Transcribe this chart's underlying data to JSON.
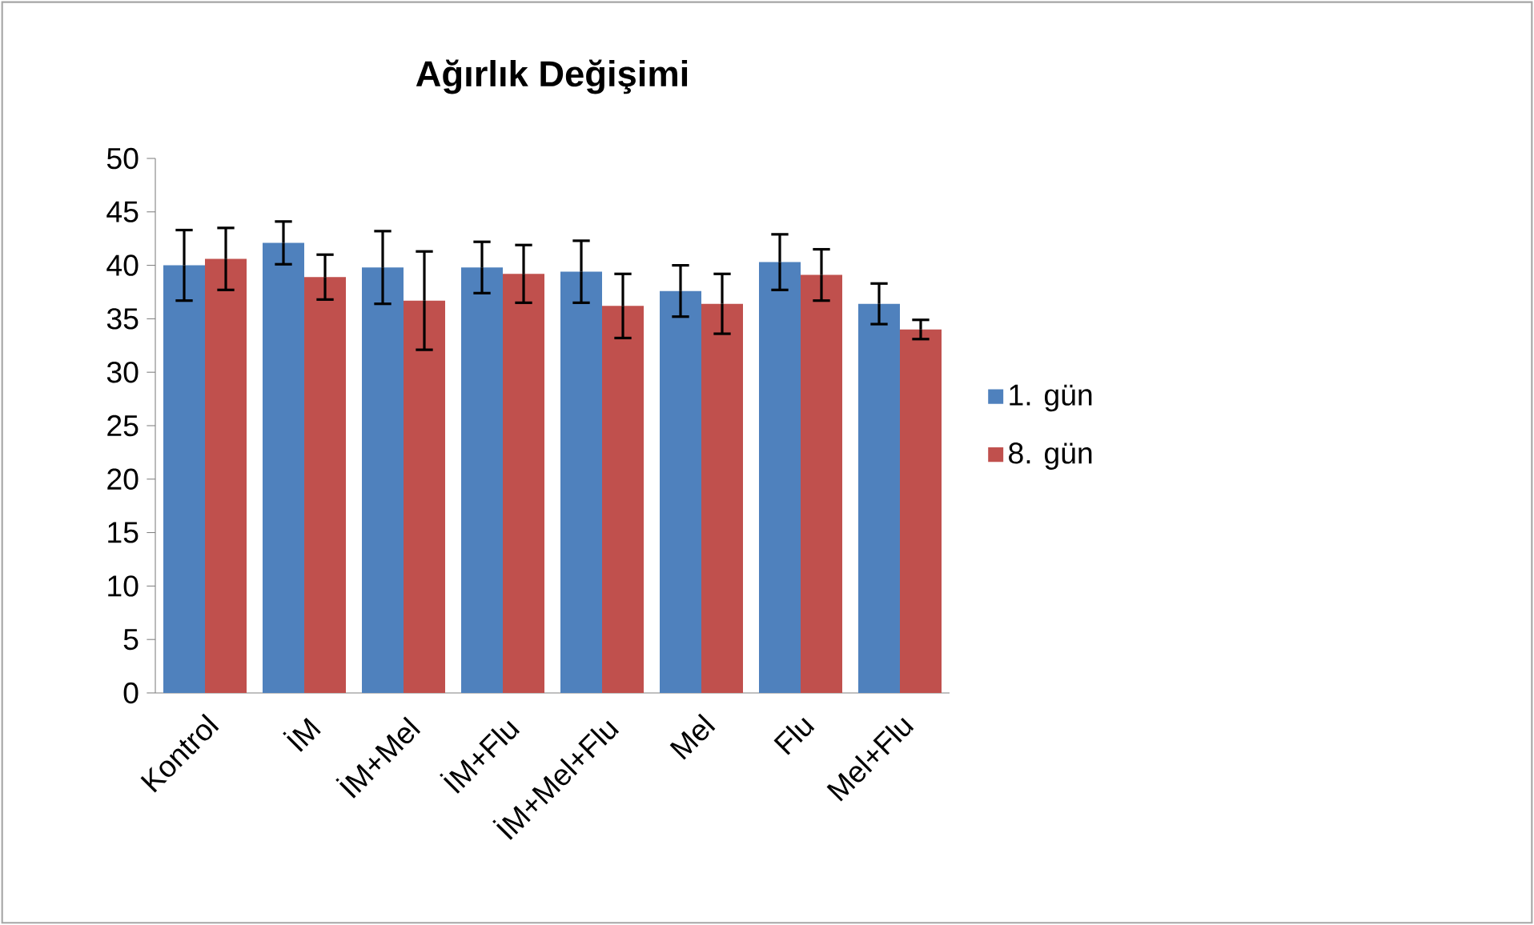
{
  "chart_data": {
    "type": "bar",
    "title": "Ağırlık Değişimi",
    "categories": [
      "Kontrol",
      "İM",
      "İM+Mel",
      "İM+Flu",
      "İM+Mel+Flu",
      "Mel",
      "Flu",
      "Mel+Flu"
    ],
    "series": [
      {
        "name": "1. gün",
        "color": "#4f81bd",
        "values": [
          40.0,
          42.1,
          39.8,
          39.8,
          39.4,
          37.6,
          40.3,
          36.4
        ],
        "errors": [
          3.3,
          2.0,
          3.4,
          2.4,
          2.9,
          2.4,
          2.6,
          1.9
        ]
      },
      {
        "name": "8. gün",
        "color": "#c0504d",
        "values": [
          40.6,
          38.9,
          36.7,
          39.2,
          36.2,
          36.4,
          39.1,
          34.0
        ],
        "errors": [
          2.9,
          2.1,
          4.6,
          2.7,
          3.0,
          2.8,
          2.4,
          0.9
        ]
      }
    ],
    "ylim": [
      0,
      50
    ],
    "yticks": [
      0,
      5,
      10,
      15,
      20,
      25,
      30,
      35,
      40,
      45,
      50
    ],
    "legend": "right"
  }
}
